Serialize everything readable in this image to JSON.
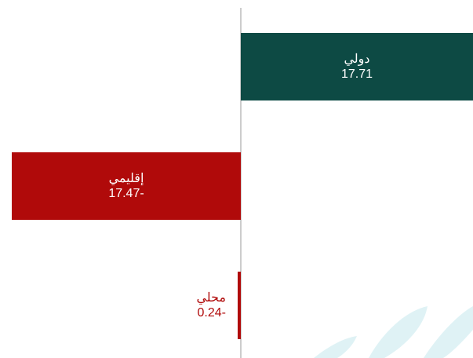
{
  "chart_data": {
    "type": "bar",
    "orientation": "horizontal",
    "categories": [
      "دولي",
      "إقليمي",
      "محلي"
    ],
    "values": [
      17.71,
      -17.47,
      -0.24
    ],
    "value_labels": [
      "17.71",
      "17.47-",
      "0.24-"
    ],
    "colors": [
      "#0d4a44",
      "#b00a0a",
      "#b00a0a"
    ]
  }
}
